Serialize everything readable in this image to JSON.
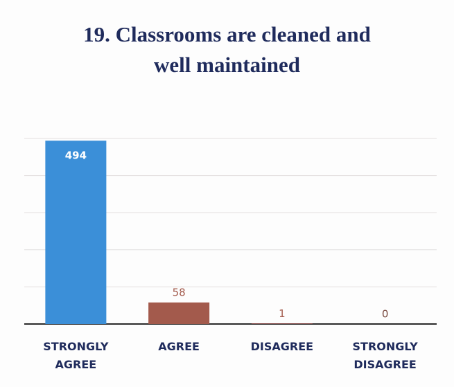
{
  "chart_data": {
    "type": "bar",
    "title": "19. Classrooms are cleaned and well maintained",
    "categories": [
      "STRONGLY AGREE",
      "AGREE",
      "DISAGREE",
      "STRONGLY DISAGREE"
    ],
    "values": [
      494,
      58,
      1,
      0
    ],
    "colors": [
      "#3b8fd8",
      "#a35a4c",
      "#c0504d",
      "#8064a2"
    ],
    "label_colors": [
      "#ffffff",
      "#a35a4c",
      "#a35a4c",
      "#7a4a40"
    ],
    "ylim": [
      0,
      500
    ],
    "yticks": [
      0,
      100,
      200,
      300,
      400,
      500
    ],
    "grid": true
  }
}
